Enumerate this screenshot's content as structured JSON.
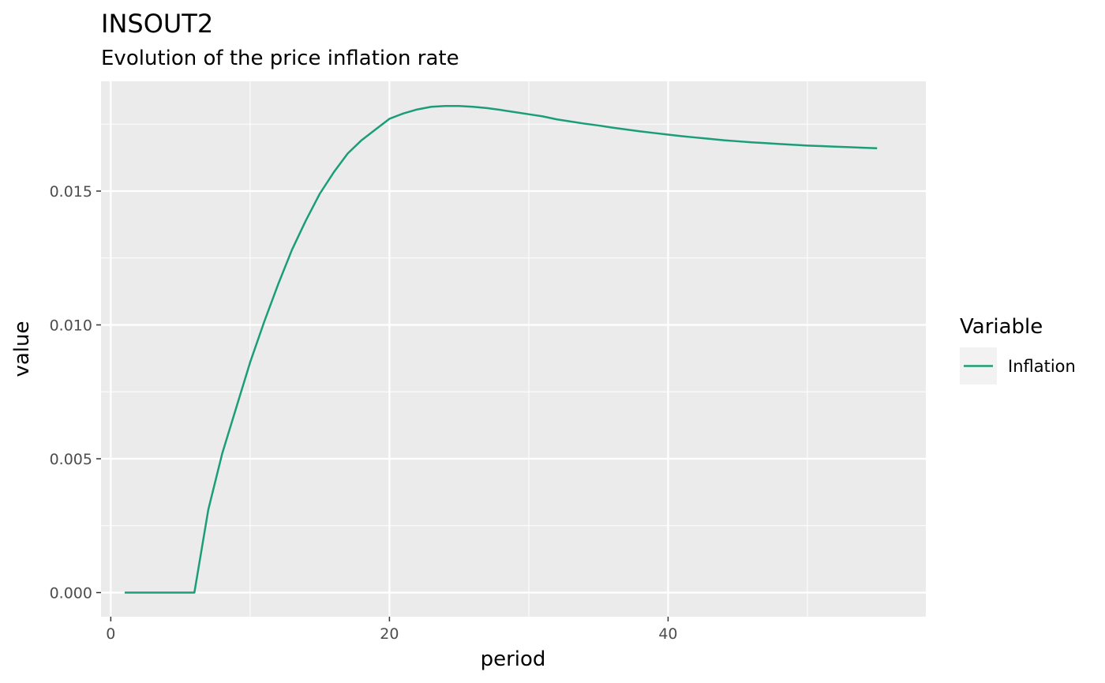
{
  "chart_data": {
    "type": "line",
    "title": "INSOUT2",
    "subtitle": "Evolution of the price inflation rate",
    "xlabel": "period",
    "ylabel": "value",
    "xlim": [
      -0.7,
      58.5
    ],
    "ylim": [
      -0.0009,
      0.0191
    ],
    "x_ticks": [
      0,
      20,
      40
    ],
    "y_ticks": [
      0.0,
      0.005,
      0.01,
      0.015
    ],
    "x_tick_labels": [
      "0",
      "20",
      "40"
    ],
    "y_tick_labels": [
      "0.000",
      "0.005",
      "0.010",
      "0.015"
    ],
    "grid": true,
    "legend": {
      "title": "Variable",
      "position": "right"
    },
    "series": [
      {
        "name": "Inflation",
        "color": "#1b9e77",
        "x": [
          1,
          2,
          3,
          4,
          5,
          6,
          7,
          8,
          9,
          10,
          11,
          12,
          13,
          14,
          15,
          16,
          17,
          18,
          19,
          20,
          21,
          22,
          23,
          24,
          25,
          26,
          27,
          28,
          29,
          30,
          31,
          32,
          33,
          34,
          35,
          36,
          37,
          38,
          39,
          40,
          41,
          42,
          43,
          44,
          45,
          46,
          47,
          48,
          49,
          50,
          51,
          52,
          53,
          54,
          55
        ],
        "values": [
          0.0,
          0.0,
          0.0,
          0.0,
          0.0,
          0.0,
          0.0031,
          0.0052,
          0.0069,
          0.0086,
          0.0101,
          0.0115,
          0.0128,
          0.0139,
          0.0149,
          0.0157,
          0.0164,
          0.0169,
          0.0173,
          0.0177,
          0.0179,
          0.01805,
          0.01815,
          0.01818,
          0.01818,
          0.01815,
          0.0181,
          0.01803,
          0.01795,
          0.01787,
          0.01779,
          0.01768,
          0.0176,
          0.01752,
          0.01745,
          0.01737,
          0.0173,
          0.01723,
          0.01717,
          0.01711,
          0.01705,
          0.017,
          0.01695,
          0.0169,
          0.01686,
          0.01682,
          0.01679,
          0.01676,
          0.01673,
          0.0167,
          0.01668,
          0.01666,
          0.01664,
          0.01662,
          0.0166
        ]
      }
    ]
  }
}
